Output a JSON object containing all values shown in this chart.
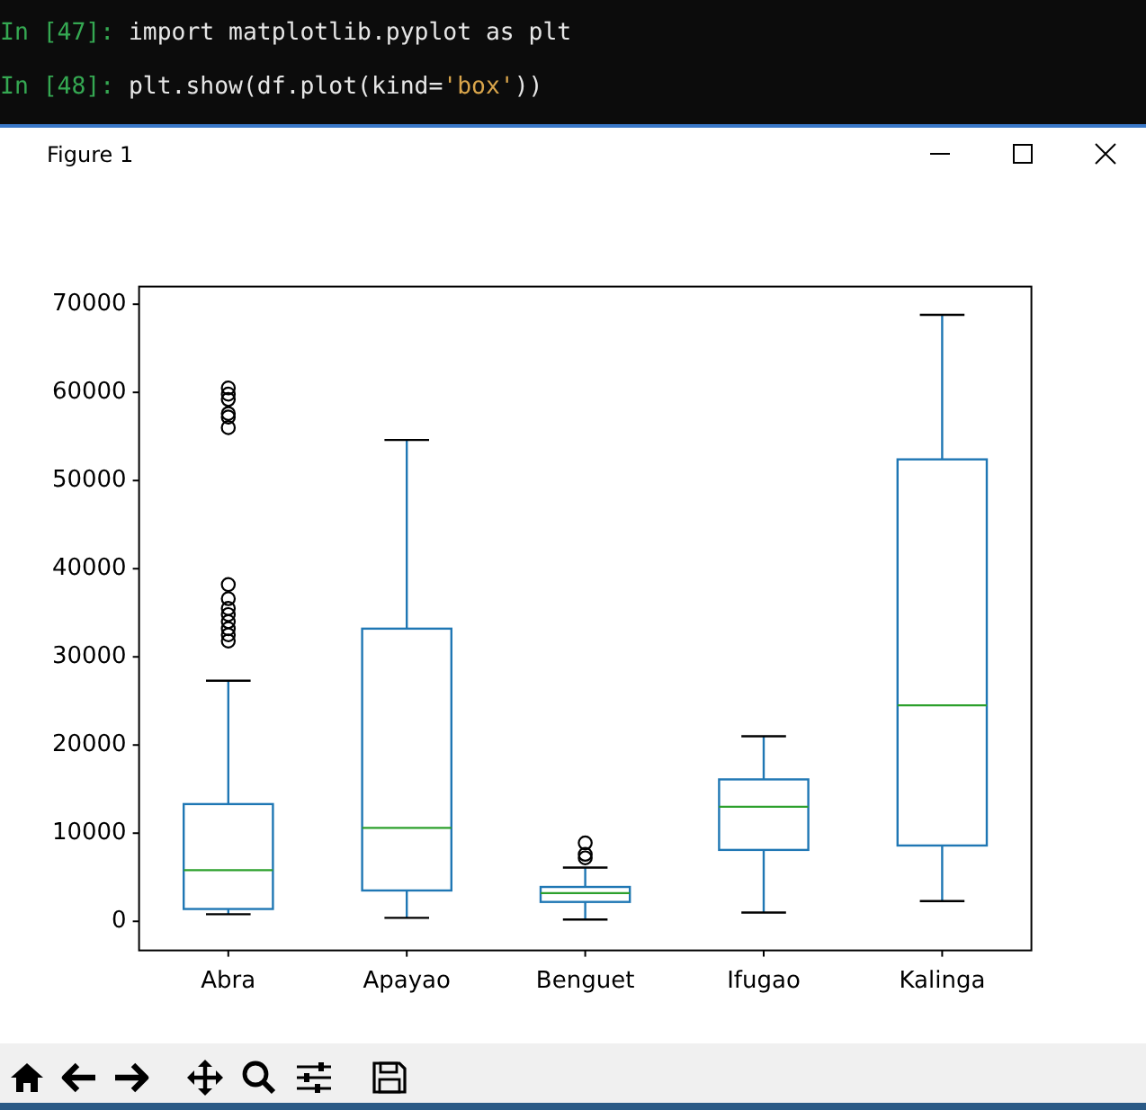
{
  "chart_data": {
    "type": "box",
    "annotations": [
      "In [47]: import matplotlib.pyplot as plt",
      "In [48]: plt.show(df.plot(kind='box'))",
      "Figure 1"
    ],
    "categories": [
      "Abra",
      "Apayao",
      "Benguet",
      "Ifugao",
      "Kalinga"
    ],
    "color": "#1f77b4",
    "boxes": [
      {
        "low": 800,
        "q1": 1400,
        "median": 5800,
        "q3": 13300,
        "high": 27300,
        "outliers": [
          60500,
          59800,
          59200,
          57600,
          57200,
          56000,
          38200,
          36600,
          35500,
          34800,
          34000,
          33200,
          32500,
          31800
        ]
      },
      {
        "low": 400,
        "q1": 3500,
        "median": 10600,
        "q3": 33200,
        "high": 54600
      },
      {
        "low": 200,
        "q1": 2200,
        "median": 3200,
        "q3": 3900,
        "high": 6100,
        "outliers": [
          8900,
          7600,
          7200
        ]
      },
      {
        "low": 1000,
        "q1": 8100,
        "median": 13000,
        "q3": 16100,
        "high": 21000
      },
      {
        "low": 2300,
        "q1": 8600,
        "median": 24500,
        "q3": 52400,
        "high": 68800
      }
    ],
    "ylim": [
      -3300,
      72000
    ],
    "yticks": [
      0,
      10000,
      20000,
      30000,
      40000,
      50000,
      60000,
      70000
    ]
  }
}
